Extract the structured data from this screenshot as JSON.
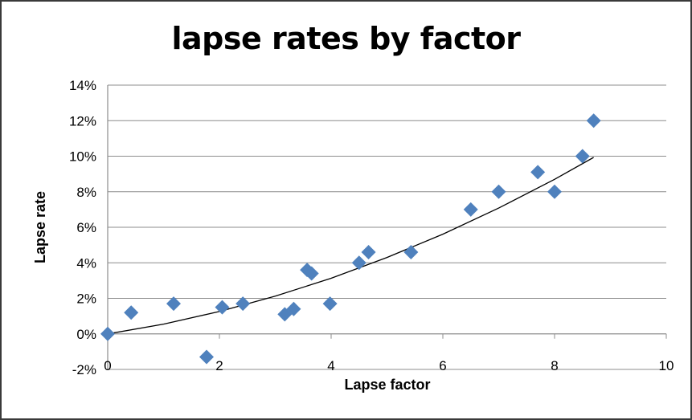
{
  "chart_data": {
    "type": "scatter",
    "title": "lapse rates by factor",
    "xlabel": "Lapse factor",
    "ylabel": "Lapse rate",
    "xlim": [
      0,
      10
    ],
    "ylim": [
      -0.02,
      0.14
    ],
    "x_ticks": [
      "0",
      "2",
      "4",
      "6",
      "8",
      "10"
    ],
    "y_ticks": [
      "-2%",
      "0%",
      "2%",
      "4%",
      "6%",
      "8%",
      "10%",
      "12%",
      "14%"
    ],
    "grid": "horizontal",
    "marker": "diamond",
    "colors": {
      "marker": "#4f81bd",
      "trendline": "#000000",
      "gridline": "#8c8c8c",
      "border": "#3a3a3a"
    },
    "series": [
      {
        "points": [
          [
            0.0,
            0.0
          ],
          [
            0.42,
            0.012
          ],
          [
            1.18,
            0.017
          ],
          [
            1.77,
            -0.013
          ],
          [
            2.05,
            0.015
          ],
          [
            2.42,
            0.017
          ],
          [
            3.17,
            0.011
          ],
          [
            3.33,
            0.014
          ],
          [
            3.57,
            0.036
          ],
          [
            3.65,
            0.034
          ],
          [
            3.98,
            0.017
          ],
          [
            4.5,
            0.04
          ],
          [
            4.67,
            0.046
          ],
          [
            5.43,
            0.046
          ],
          [
            6.5,
            0.07
          ],
          [
            7.0,
            0.08
          ],
          [
            7.7,
            0.091
          ],
          [
            8.0,
            0.08
          ],
          [
            8.5,
            0.1
          ],
          [
            8.7,
            0.12
          ]
        ]
      }
    ],
    "trendline": {
      "type": "polynomial",
      "points": [
        [
          0.0,
          0.0
        ],
        [
          1.0,
          0.0055
        ],
        [
          2.0,
          0.0126
        ],
        [
          3.0,
          0.0212
        ],
        [
          4.0,
          0.0313
        ],
        [
          5.0,
          0.043
        ],
        [
          6.0,
          0.0561
        ],
        [
          7.0,
          0.0708
        ],
        [
          8.0,
          0.087
        ],
        [
          8.7,
          0.0993
        ]
      ]
    }
  }
}
